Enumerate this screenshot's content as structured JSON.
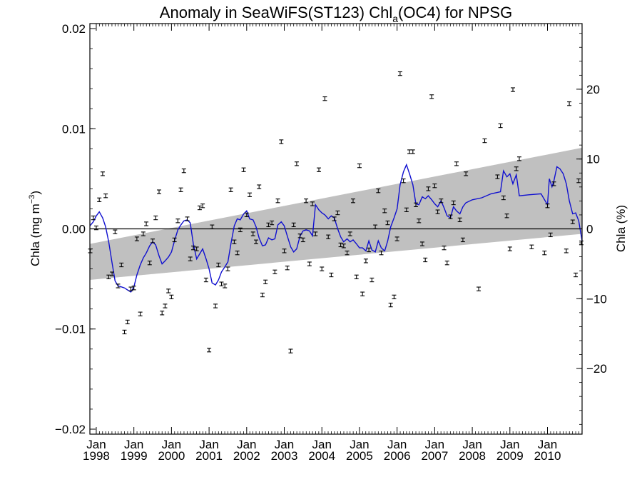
{
  "title_main": "Anomaly in SeaWiFS(ST123) Chl",
  "title_sub": "a",
  "title_rest": "(OC4) for NPSG",
  "left_axis_label_main": "Chla (mg m",
  "left_axis_label_sup": "−3",
  "left_axis_label_end": ")",
  "right_axis_label": "Chla (%)",
  "colors": {
    "line": "#1010d0",
    "band": "#c0c0c0",
    "points": "#000000"
  },
  "chart_data": {
    "type": "scatter",
    "x_range": [
      1997.83,
      2010.92
    ],
    "y_left": {
      "lim": [
        -0.0205,
        0.0205
      ],
      "ticks": [
        0.02,
        0.01,
        0.0,
        -0.01,
        -0.02
      ],
      "tick_labels": [
        "0.02",
        "0.01",
        "0.00",
        "−0.01",
        "−0.02"
      ]
    },
    "y_right": {
      "lim": [
        -29.4,
        29.4
      ],
      "ticks": [
        20,
        10,
        0,
        -10,
        -20
      ],
      "tick_labels": [
        "20",
        "10",
        "0",
        "−10",
        "−20"
      ]
    },
    "x_ticks": [
      {
        "value": 1998,
        "month": "Jan",
        "year": "1998"
      },
      {
        "value": 1999,
        "month": "Jan",
        "year": "1999"
      },
      {
        "value": 2000,
        "month": "Jan",
        "year": "2000"
      },
      {
        "value": 2001,
        "month": "Jan",
        "year": "2001"
      },
      {
        "value": 2002,
        "month": "Jan",
        "year": "2002"
      },
      {
        "value": 2003,
        "month": "Jan",
        "year": "2003"
      },
      {
        "value": 2004,
        "month": "Jan",
        "year": "2004"
      },
      {
        "value": 2005,
        "month": "Jan",
        "year": "2005"
      },
      {
        "value": 2006,
        "month": "Jan",
        "year": "2006"
      },
      {
        "value": 2007,
        "month": "Jan",
        "year": "2007"
      },
      {
        "value": 2008,
        "month": "Jan",
        "year": "2008"
      },
      {
        "value": 2009,
        "month": "Jan",
        "year": "2009"
      },
      {
        "value": 2010,
        "month": "Jan",
        "year": "2010"
      }
    ],
    "trend_band": {
      "x": [
        1997.83,
        2010.92
      ],
      "upper": [
        -0.0015,
        0.0081
      ],
      "lower": [
        -0.0051,
        -0.0005
      ]
    },
    "zero_line": 0.0,
    "monthly_points": [
      [
        1997.84,
        -0.0022
      ],
      [
        1997.92,
        0.0011
      ],
      [
        1998.0,
        0.0001
      ],
      [
        1998.08,
        0.0029
      ],
      [
        1998.17,
        0.0055
      ],
      [
        1998.25,
        0.0033
      ],
      [
        1998.33,
        -0.0048
      ],
      [
        1998.42,
        -0.0045
      ],
      [
        1998.5,
        -0.0003
      ],
      [
        1998.58,
        -0.0057
      ],
      [
        1998.67,
        -0.0036
      ],
      [
        1998.75,
        -0.0103
      ],
      [
        1998.83,
        -0.0093
      ],
      [
        1998.92,
        -0.006
      ],
      [
        1999.0,
        -0.0059
      ],
      [
        1999.08,
        -0.001
      ],
      [
        1999.17,
        -0.0085
      ],
      [
        1999.25,
        -0.0005
      ],
      [
        1999.33,
        0.0005
      ],
      [
        1999.42,
        -0.0034
      ],
      [
        1999.5,
        -0.0012
      ],
      [
        1999.58,
        0.0011
      ],
      [
        1999.67,
        0.0037
      ],
      [
        1999.75,
        -0.0084
      ],
      [
        1999.83,
        -0.0077
      ],
      [
        1999.92,
        -0.0062
      ],
      [
        2000.0,
        -0.0068
      ],
      [
        2000.08,
        -0.0011
      ],
      [
        2000.17,
        0.0008
      ],
      [
        2000.25,
        0.0039
      ],
      [
        2000.33,
        0.0058
      ],
      [
        2000.42,
        0.001
      ],
      [
        2000.5,
        -0.003
      ],
      [
        2000.58,
        -0.0019
      ],
      [
        2000.67,
        -0.002
      ],
      [
        2000.75,
        0.0021
      ],
      [
        2000.83,
        0.0023
      ],
      [
        2000.92,
        -0.0051
      ],
      [
        2001.0,
        -0.0121
      ],
      [
        2001.08,
        0.0002
      ],
      [
        2001.17,
        -0.0077
      ],
      [
        2001.25,
        -0.0036
      ],
      [
        2001.33,
        -0.0055
      ],
      [
        2001.42,
        -0.0057
      ],
      [
        2001.5,
        -0.004
      ],
      [
        2001.58,
        0.0039
      ],
      [
        2001.67,
        -0.0013
      ],
      [
        2001.75,
        -0.0024
      ],
      [
        2001.83,
        -0.0001
      ],
      [
        2001.92,
        0.0059
      ],
      [
        2002.0,
        0.0014
      ],
      [
        2002.08,
        0.0034
      ],
      [
        2002.17,
        -0.0005
      ],
      [
        2002.25,
        -0.0013
      ],
      [
        2002.33,
        0.0042
      ],
      [
        2002.42,
        -0.0066
      ],
      [
        2002.5,
        -0.0053
      ],
      [
        2002.58,
        0.0004
      ],
      [
        2002.67,
        0.0006
      ],
      [
        2002.75,
        -0.0043
      ],
      [
        2002.83,
        0.0028
      ],
      [
        2002.92,
        0.0087
      ],
      [
        2003.0,
        -0.0022
      ],
      [
        2003.08,
        -0.0039
      ],
      [
        2003.17,
        -0.0122
      ],
      [
        2003.25,
        0.0004
      ],
      [
        2003.33,
        0.0065
      ],
      [
        2003.42,
        -0.0007
      ],
      [
        2003.5,
        -0.0011
      ],
      [
        2003.58,
        0.0028
      ],
      [
        2003.67,
        -0.0035
      ],
      [
        2003.75,
        0.0025
      ],
      [
        2003.83,
        -0.0005
      ],
      [
        2003.92,
        0.0059
      ],
      [
        2004.0,
        -0.004
      ],
      [
        2004.08,
        0.013
      ],
      [
        2004.17,
        -0.0008
      ],
      [
        2004.25,
        -0.0046
      ],
      [
        2004.33,
        0.001
      ],
      [
        2004.42,
        0.0016
      ],
      [
        2004.5,
        -0.0016
      ],
      [
        2004.58,
        -0.0017
      ],
      [
        2004.67,
        -0.0024
      ],
      [
        2004.75,
        -0.0005
      ],
      [
        2004.83,
        0.0028
      ],
      [
        2004.92,
        -0.0048
      ],
      [
        2005.0,
        0.0063
      ],
      [
        2005.08,
        -0.0065
      ],
      [
        2005.17,
        -0.0032
      ],
      [
        2005.25,
        -0.0021
      ],
      [
        2005.33,
        -0.0051
      ],
      [
        2005.42,
        0.0002
      ],
      [
        2005.5,
        0.0038
      ],
      [
        2005.58,
        -0.0024
      ],
      [
        2005.67,
        0.0018
      ],
      [
        2005.75,
        0.0006
      ],
      [
        2005.83,
        -0.0076
      ],
      [
        2005.92,
        -0.0068
      ],
      [
        2006.0,
        -0.001
      ],
      [
        2006.08,
        0.0155
      ],
      [
        2006.17,
        0.0048
      ],
      [
        2006.25,
        0.0019
      ],
      [
        2006.33,
        0.0077
      ],
      [
        2006.42,
        0.0077
      ],
      [
        2006.5,
        0.0024
      ],
      [
        2006.58,
        0.0008
      ],
      [
        2006.67,
        -0.0015
      ],
      [
        2006.75,
        -0.0031
      ],
      [
        2006.83,
        0.004
      ],
      [
        2006.92,
        0.0132
      ],
      [
        2007.0,
        0.0043
      ],
      [
        2007.08,
        0.0017
      ],
      [
        2007.17,
        0.0028
      ],
      [
        2007.25,
        -0.0019
      ],
      [
        2007.33,
        -0.0034
      ],
      [
        2007.42,
        0.0012
      ],
      [
        2007.5,
        0.0026
      ],
      [
        2007.58,
        0.0065
      ],
      [
        2007.67,
        0.0009
      ],
      [
        2007.75,
        -0.0011
      ],
      [
        2007.83,
        0.0055
      ],
      [
        2008.17,
        -0.006
      ],
      [
        2008.33,
        0.0088
      ],
      [
        2008.67,
        0.0052
      ],
      [
        2008.75,
        0.0103
      ],
      [
        2008.83,
        0.0031
      ],
      [
        2008.92,
        0.0013
      ],
      [
        2009.0,
        -0.002
      ],
      [
        2009.08,
        0.0139
      ],
      [
        2009.17,
        0.006
      ],
      [
        2009.25,
        0.007
      ],
      [
        2009.58,
        -0.0018
      ],
      [
        2009.92,
        -0.0024
      ],
      [
        2010.0,
        0.0023
      ],
      [
        2010.08,
        -0.0006
      ],
      [
        2010.17,
        0.0045
      ],
      [
        2010.5,
        -0.0022
      ],
      [
        2010.58,
        0.0125
      ],
      [
        2010.67,
        0.0007
      ],
      [
        2010.75,
        -0.0046
      ],
      [
        2010.83,
        0.0048
      ],
      [
        2010.9,
        -0.0014
      ]
    ],
    "running_mean": [
      [
        1997.83,
        0.0003
      ],
      [
        1997.92,
        0.0007
      ],
      [
        1998.0,
        0.0013
      ],
      [
        1998.08,
        0.0017
      ],
      [
        1998.17,
        0.0011
      ],
      [
        1998.25,
        0.0002
      ],
      [
        1998.33,
        -0.0013
      ],
      [
        1998.42,
        -0.0034
      ],
      [
        1998.5,
        -0.0052
      ],
      [
        1998.58,
        -0.0057
      ],
      [
        1998.67,
        -0.0058
      ],
      [
        1998.75,
        -0.0059
      ],
      [
        1998.83,
        -0.0061
      ],
      [
        1998.92,
        -0.0063
      ],
      [
        1999.0,
        -0.0058
      ],
      [
        1999.08,
        -0.0046
      ],
      [
        1999.17,
        -0.0036
      ],
      [
        1999.25,
        -0.0029
      ],
      [
        1999.33,
        -0.0024
      ],
      [
        1999.42,
        -0.0017
      ],
      [
        1999.5,
        -0.0013
      ],
      [
        1999.58,
        -0.0016
      ],
      [
        1999.67,
        -0.0027
      ],
      [
        1999.75,
        -0.0035
      ],
      [
        1999.83,
        -0.0032
      ],
      [
        1999.92,
        -0.0028
      ],
      [
        2000.0,
        -0.0023
      ],
      [
        2000.08,
        -0.0012
      ],
      [
        2000.17,
        -0.0001
      ],
      [
        2000.25,
        0.0004
      ],
      [
        2000.33,
        0.0008
      ],
      [
        2000.42,
        0.0009
      ],
      [
        2000.5,
        0.0006
      ],
      [
        2000.58,
        -0.0015
      ],
      [
        2000.67,
        -0.003
      ],
      [
        2000.75,
        -0.0025
      ],
      [
        2000.83,
        -0.002
      ],
      [
        2000.92,
        -0.003
      ],
      [
        2001.0,
        -0.004
      ],
      [
        2001.08,
        -0.0054
      ],
      [
        2001.17,
        -0.0056
      ],
      [
        2001.25,
        -0.0051
      ],
      [
        2001.33,
        -0.0043
      ],
      [
        2001.42,
        -0.0038
      ],
      [
        2001.5,
        -0.0033
      ],
      [
        2001.58,
        -0.0015
      ],
      [
        2001.67,
        0.0003
      ],
      [
        2001.75,
        0.001
      ],
      [
        2001.83,
        0.0009
      ],
      [
        2001.92,
        0.0015
      ],
      [
        2002.0,
        0.0018
      ],
      [
        2002.08,
        0.001
      ],
      [
        2002.17,
        0.0009
      ],
      [
        2002.25,
        0.0002
      ],
      [
        2002.33,
        -0.0009
      ],
      [
        2002.42,
        -0.0017
      ],
      [
        2002.5,
        -0.0016
      ],
      [
        2002.58,
        -0.0009
      ],
      [
        2002.67,
        -0.0011
      ],
      [
        2002.75,
        -0.001
      ],
      [
        2002.83,
        0.0004
      ],
      [
        2002.92,
        0.0007
      ],
      [
        2003.0,
        0.0003
      ],
      [
        2003.08,
        -0.0007
      ],
      [
        2003.17,
        -0.0018
      ],
      [
        2003.25,
        -0.0023
      ],
      [
        2003.33,
        -0.002
      ],
      [
        2003.42,
        -0.0007
      ],
      [
        2003.5,
        -0.0002
      ],
      [
        2003.58,
        -0.0001
      ],
      [
        2003.67,
        -0.0002
      ],
      [
        2003.75,
        -0.0007
      ],
      [
        2003.83,
        0.0024
      ],
      [
        2003.92,
        0.0019
      ],
      [
        2004.0,
        0.0016
      ],
      [
        2004.08,
        0.0014
      ],
      [
        2004.17,
        0.001
      ],
      [
        2004.25,
        0.0013
      ],
      [
        2004.33,
        0.0011
      ],
      [
        2004.42,
        0.0
      ],
      [
        2004.5,
        -0.0008
      ],
      [
        2004.58,
        -0.0013
      ],
      [
        2004.67,
        -0.001
      ],
      [
        2004.75,
        -0.0013
      ],
      [
        2004.83,
        -0.0011
      ],
      [
        2004.92,
        -0.0015
      ],
      [
        2005.0,
        -0.0019
      ],
      [
        2005.08,
        -0.0019
      ],
      [
        2005.17,
        -0.0022
      ],
      [
        2005.25,
        -0.0012
      ],
      [
        2005.33,
        -0.0021
      ],
      [
        2005.42,
        -0.0023
      ],
      [
        2005.5,
        -0.0012
      ],
      [
        2005.58,
        -0.0019
      ],
      [
        2005.67,
        -0.0022
      ],
      [
        2005.75,
        -0.0012
      ],
      [
        2005.83,
        0.0002
      ],
      [
        2005.92,
        0.0011
      ],
      [
        2006.0,
        0.002
      ],
      [
        2006.08,
        0.0044
      ],
      [
        2006.17,
        0.0057
      ],
      [
        2006.25,
        0.0064
      ],
      [
        2006.33,
        0.0055
      ],
      [
        2006.42,
        0.0044
      ],
      [
        2006.5,
        0.0025
      ],
      [
        2006.58,
        0.0024
      ],
      [
        2006.67,
        0.0032
      ],
      [
        2006.75,
        0.003
      ],
      [
        2006.83,
        0.0033
      ],
      [
        2006.92,
        0.0029
      ],
      [
        2007.0,
        0.0025
      ],
      [
        2007.08,
        0.0022
      ],
      [
        2007.17,
        0.0028
      ],
      [
        2007.25,
        0.0021
      ],
      [
        2007.33,
        0.0013
      ],
      [
        2007.42,
        0.0011
      ],
      [
        2007.5,
        0.0022
      ],
      [
        2007.58,
        0.0018
      ],
      [
        2007.67,
        0.0015
      ],
      [
        2007.75,
        0.0022
      ],
      [
        2007.83,
        0.0026
      ],
      [
        2008.0,
        0.0029
      ],
      [
        2008.25,
        0.0031
      ],
      [
        2008.5,
        0.0035
      ],
      [
        2008.75,
        0.0037
      ],
      [
        2008.83,
        0.0058
      ],
      [
        2008.92,
        0.0052
      ],
      [
        2009.0,
        0.0055
      ],
      [
        2009.08,
        0.0045
      ],
      [
        2009.17,
        0.0054
      ],
      [
        2009.25,
        0.0033
      ],
      [
        2009.5,
        0.0034
      ],
      [
        2009.83,
        0.0035
      ],
      [
        2010.0,
        0.0024
      ],
      [
        2010.05,
        0.005
      ],
      [
        2010.12,
        0.0042
      ],
      [
        2010.17,
        0.0048
      ],
      [
        2010.25,
        0.0062
      ],
      [
        2010.33,
        0.006
      ],
      [
        2010.42,
        0.0055
      ],
      [
        2010.5,
        0.0045
      ],
      [
        2010.58,
        0.0028
      ],
      [
        2010.67,
        0.0015
      ],
      [
        2010.75,
        0.0016
      ],
      [
        2010.83,
        0.0008
      ],
      [
        2010.92,
        -0.0012
      ]
    ]
  }
}
